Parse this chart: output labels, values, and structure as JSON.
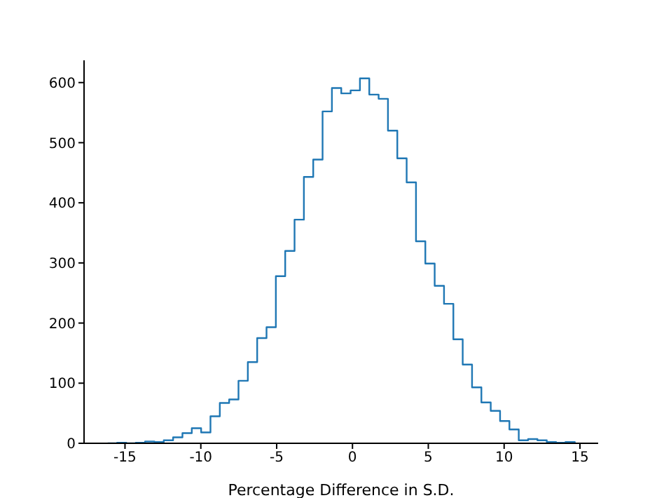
{
  "chart_data": {
    "type": "histogram",
    "xlabel": "Percentage Difference in S.D.",
    "color": "#1f77b4",
    "bins": [
      -16.14,
      -15.524,
      -14.908,
      -14.292,
      -13.676,
      -13.06,
      -12.444,
      -11.828,
      -11.212,
      -10.596,
      -9.98,
      -9.364,
      -8.748,
      -8.132,
      -7.516,
      -6.9,
      -6.284,
      -5.668,
      -5.052,
      -4.436,
      -3.82,
      -3.204,
      -2.588,
      -1.972,
      -1.356,
      -0.74,
      -0.124,
      0.492,
      1.108,
      1.724,
      2.34,
      2.956,
      3.572,
      4.188,
      4.804,
      5.42,
      6.036,
      6.652,
      7.268,
      7.884,
      8.5,
      9.116,
      9.732,
      10.348,
      10.964,
      11.58,
      12.196,
      12.812,
      13.428,
      14.044,
      14.66
    ],
    "values": [
      0,
      1,
      0,
      1,
      3,
      2,
      5,
      10,
      17,
      25,
      18,
      45,
      67,
      73,
      104,
      135,
      175,
      193,
      278,
      320,
      372,
      443,
      472,
      552,
      591,
      582,
      587,
      607,
      580,
      573,
      520,
      474,
      434,
      336,
      299,
      262,
      232,
      173,
      131,
      93,
      68,
      54,
      37,
      23,
      5,
      7,
      5,
      2,
      1,
      2
    ],
    "xlim": [
      -17.7,
      16.2
    ],
    "xticks": [
      -15,
      -10,
      -5,
      0,
      5,
      10,
      15
    ],
    "ylim": [
      0,
      637
    ],
    "yticks": [
      0,
      100,
      200,
      300,
      400,
      500,
      600
    ]
  }
}
